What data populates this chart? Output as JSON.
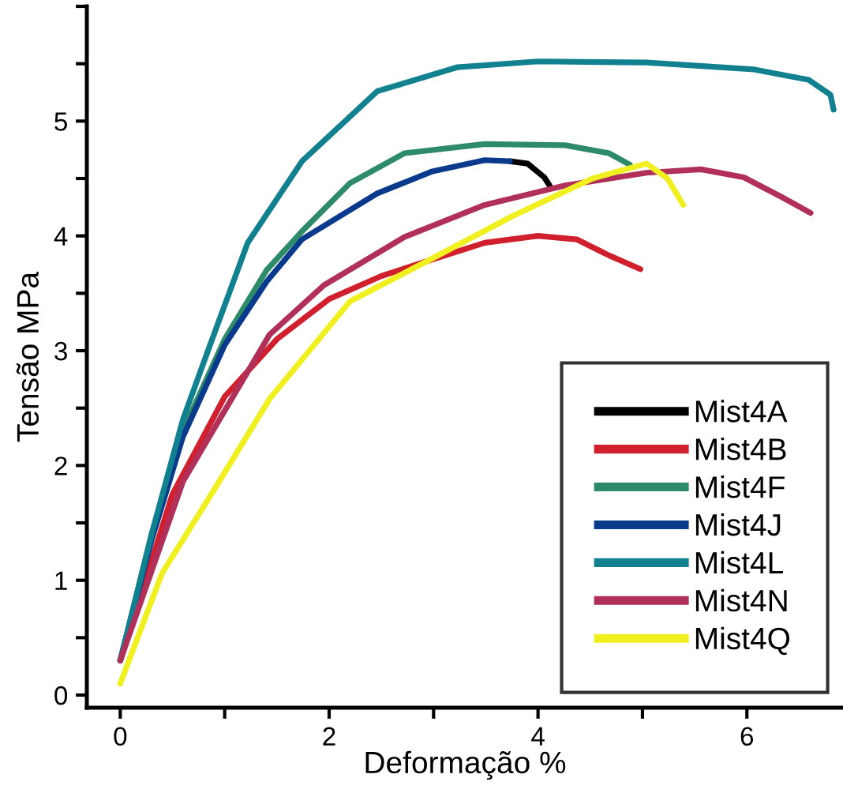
{
  "chart_data": {
    "type": "line",
    "xlabel": "Deformação %",
    "ylabel": "Tensão MPa",
    "xlim": [
      -0.32,
      6.92
    ],
    "ylim": [
      -0.11,
      6
    ],
    "xticks": [
      0,
      {
        "value": 1,
        "label": null
      },
      2,
      {
        "value": 3,
        "label": null
      },
      4,
      {
        "value": 5,
        "label": null
      },
      6
    ],
    "yticks": [
      0,
      {
        "value": 0.5,
        "label": null
      },
      1,
      {
        "value": 1.5,
        "label": null
      },
      2,
      {
        "value": 2.5,
        "label": null
      },
      3,
      {
        "value": 3.5,
        "label": null
      },
      4,
      {
        "value": 4.5,
        "label": null
      },
      5,
      {
        "value": 5.5,
        "label": null
      },
      {
        "value": 6,
        "label": null
      }
    ],
    "grid": false,
    "legend": "bottom right",
    "marker": "none",
    "line_style": "solid",
    "series": [
      {
        "name": "Mist4A",
        "color": "#000000",
        "x": [
          3.73,
          3.9,
          4.06,
          4.11
        ],
        "values": [
          4.65,
          4.63,
          4.51,
          4.44
        ]
      },
      {
        "name": "Mist4B",
        "color": "#d0202e",
        "x": [
          0,
          0.5,
          1.0,
          1.5,
          2.0,
          2.5,
          2.87,
          3.49,
          4.0,
          4.37,
          4.68,
          4.98
        ],
        "values": [
          0.3,
          1.75,
          2.6,
          3.1,
          3.45,
          3.65,
          3.76,
          3.94,
          4.0,
          3.97,
          3.83,
          3.71
        ]
      },
      {
        "name": "Mist4F",
        "color": "#2e8b6a",
        "x": [
          0,
          0.3,
          0.6,
          1.0,
          1.4,
          1.74,
          2.2,
          2.72,
          3.49,
          4.26,
          4.68,
          4.88
        ],
        "values": [
          0.3,
          1.4,
          2.3,
          3.1,
          3.7,
          4.04,
          4.46,
          4.72,
          4.8,
          4.79,
          4.72,
          4.62
        ]
      },
      {
        "name": "Mist4J",
        "color": "#0a3a8c",
        "x": [
          0,
          0.3,
          0.6,
          1.0,
          1.4,
          1.74,
          2.46,
          2.98,
          3.49,
          3.73
        ],
        "values": [
          0.3,
          1.35,
          2.25,
          3.05,
          3.6,
          3.97,
          4.37,
          4.56,
          4.66,
          4.65
        ]
      },
      {
        "name": "Mist4L",
        "color": "#11808f",
        "x": [
          0,
          0.3,
          0.6,
          0.86,
          1.22,
          1.74,
          2.46,
          3.23,
          4.0,
          5.04,
          6.07,
          6.59,
          6.8,
          6.83
        ],
        "values": [
          0.3,
          1.4,
          2.4,
          3.05,
          3.94,
          4.65,
          5.26,
          5.47,
          5.52,
          5.51,
          5.45,
          5.36,
          5.23,
          5.1
        ]
      },
      {
        "name": "Mist4N",
        "color": "#b0305a",
        "x": [
          0,
          0.6,
          1.43,
          1.95,
          2.72,
          3.49,
          4.26,
          5.04,
          5.56,
          5.97,
          6.33,
          6.61
        ],
        "values": [
          0.3,
          1.86,
          3.14,
          3.57,
          3.99,
          4.27,
          4.44,
          4.55,
          4.58,
          4.51,
          4.34,
          4.2
        ]
      },
      {
        "name": "Mist4Q",
        "color": "#f0f020",
        "x": [
          0,
          0.4,
          0.92,
          1.43,
          2.2,
          2.98,
          3.75,
          4.52,
          5.04,
          5.24,
          5.39
        ],
        "values": [
          0.1,
          1.06,
          1.82,
          2.58,
          3.43,
          3.8,
          4.17,
          4.5,
          4.63,
          4.5,
          4.27
        ]
      }
    ]
  }
}
